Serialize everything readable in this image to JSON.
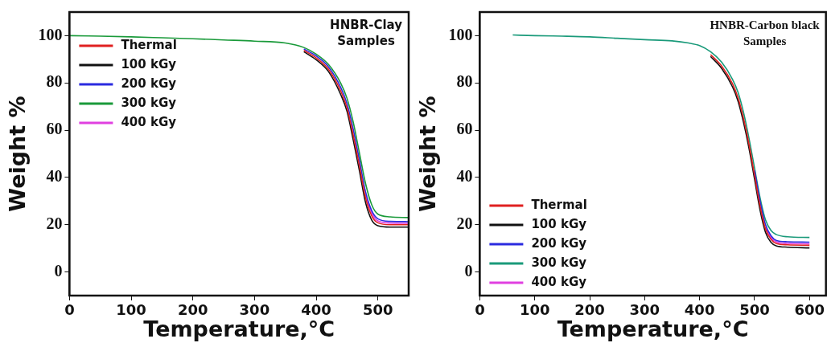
{
  "chart_data": [
    {
      "type": "line",
      "annotations": [
        "HNBR-Clay Samples"
      ],
      "xlabel": "Temperature,°C",
      "ylabel": "Weight %",
      "xlim": [
        0,
        550
      ],
      "ylim": [
        -10,
        110
      ],
      "xticks": [
        0,
        100,
        200,
        300,
        400,
        500
      ],
      "yticks": [
        0,
        20,
        40,
        60,
        80,
        100
      ],
      "legend": "top left",
      "marker": "none",
      "x": [
        0,
        50,
        100,
        150,
        200,
        250,
        300,
        350,
        380,
        400,
        420,
        440,
        450,
        460,
        470,
        480,
        490,
        500,
        520,
        550
      ],
      "series": [
        {
          "name": "Thermal",
          "color": "#e02020",
          "values": [
            null,
            null,
            null,
            null,
            null,
            null,
            null,
            null,
            93.8,
            90.6,
            85.8,
            76.5,
            69.5,
            58,
            45,
            31.5,
            23.8,
            20.8,
            20,
            20
          ]
        },
        {
          "name": "100 kGy",
          "color": "#111111",
          "values": [
            null,
            null,
            null,
            null,
            null,
            null,
            null,
            null,
            93.2,
            89.8,
            84.8,
            75,
            68,
            56,
            43,
            29.5,
            22,
            19.6,
            19,
            19
          ]
        },
        {
          "name": "200 kGy",
          "color": "#2a2ae0",
          "values": [
            null,
            null,
            null,
            null,
            null,
            null,
            null,
            null,
            94.4,
            91.4,
            86.8,
            78,
            71.2,
            60.5,
            47.5,
            34,
            26,
            22.5,
            21.4,
            21.3
          ]
        },
        {
          "name": "300 kGy",
          "color": "#1a9a3a",
          "values": [
            100,
            99.8,
            99.5,
            99.1,
            98.7,
            98.2,
            97.7,
            96.9,
            95,
            92.2,
            87.8,
            79.8,
            73.5,
            63.5,
            50.5,
            37.5,
            28.5,
            24.5,
            23.3,
            23
          ]
        },
        {
          "name": "400 kGy",
          "color": "#e040e0",
          "values": [
            null,
            null,
            null,
            null,
            null,
            null,
            null,
            null,
            null,
            null,
            null,
            null,
            null,
            null,
            null,
            32.8,
            25,
            21.6,
            20.7,
            20.6
          ]
        }
      ]
    },
    {
      "type": "line",
      "annotations": [
        "HNBR-Carbon black Samples"
      ],
      "xlabel": "Temperature,°C",
      "ylabel": "Weight %",
      "xlim": [
        0,
        630
      ],
      "ylim": [
        -10,
        110
      ],
      "xticks": [
        0,
        100,
        200,
        300,
        400,
        500,
        600
      ],
      "yticks": [
        0,
        20,
        40,
        60,
        80,
        100
      ],
      "legend": "bottom left",
      "marker": "none",
      "x": [
        60,
        100,
        150,
        200,
        250,
        300,
        350,
        380,
        400,
        420,
        440,
        460,
        470,
        480,
        490,
        500,
        510,
        520,
        530,
        540,
        560,
        600
      ],
      "series": [
        {
          "name": "Thermal",
          "color": "#e02020",
          "values": [
            null,
            null,
            null,
            null,
            null,
            null,
            null,
            null,
            null,
            92,
            87.2,
            79.6,
            73.7,
            65,
            54,
            41,
            28,
            18.2,
            13.8,
            12,
            11.5,
            11.3
          ]
        },
        {
          "name": "100 kGy",
          "color": "#111111",
          "values": [
            null,
            null,
            null,
            null,
            null,
            null,
            null,
            null,
            null,
            91.2,
            86.2,
            78.3,
            72.3,
            63.3,
            52.3,
            39.3,
            26.3,
            16.8,
            12.5,
            11,
            10.5,
            10.2
          ]
        },
        {
          "name": "200 kGy",
          "color": "#2a2ae0",
          "values": [
            null,
            null,
            null,
            null,
            null,
            null,
            null,
            null,
            null,
            null,
            null,
            null,
            null,
            null,
            null,
            43,
            30,
            20,
            15.3,
            13.3,
            12.8,
            12.6
          ]
        },
        {
          "name": "300 kGy",
          "color": "#1a9a7a",
          "values": [
            100.3,
            100,
            99.8,
            99.5,
            98.9,
            98.3,
            97.8,
            96.9,
            95.8,
            93.2,
            88.8,
            81.5,
            76,
            67.5,
            56.5,
            44,
            31.5,
            22,
            17.5,
            15.8,
            14.9,
            14.6
          ]
        },
        {
          "name": "400 kGy",
          "color": "#e040e0",
          "values": [
            null,
            null,
            null,
            null,
            null,
            null,
            null,
            null,
            null,
            null,
            null,
            null,
            null,
            null,
            null,
            null,
            null,
            19,
            14.5,
            12.7,
            12.1,
            11.9
          ]
        }
      ]
    }
  ]
}
